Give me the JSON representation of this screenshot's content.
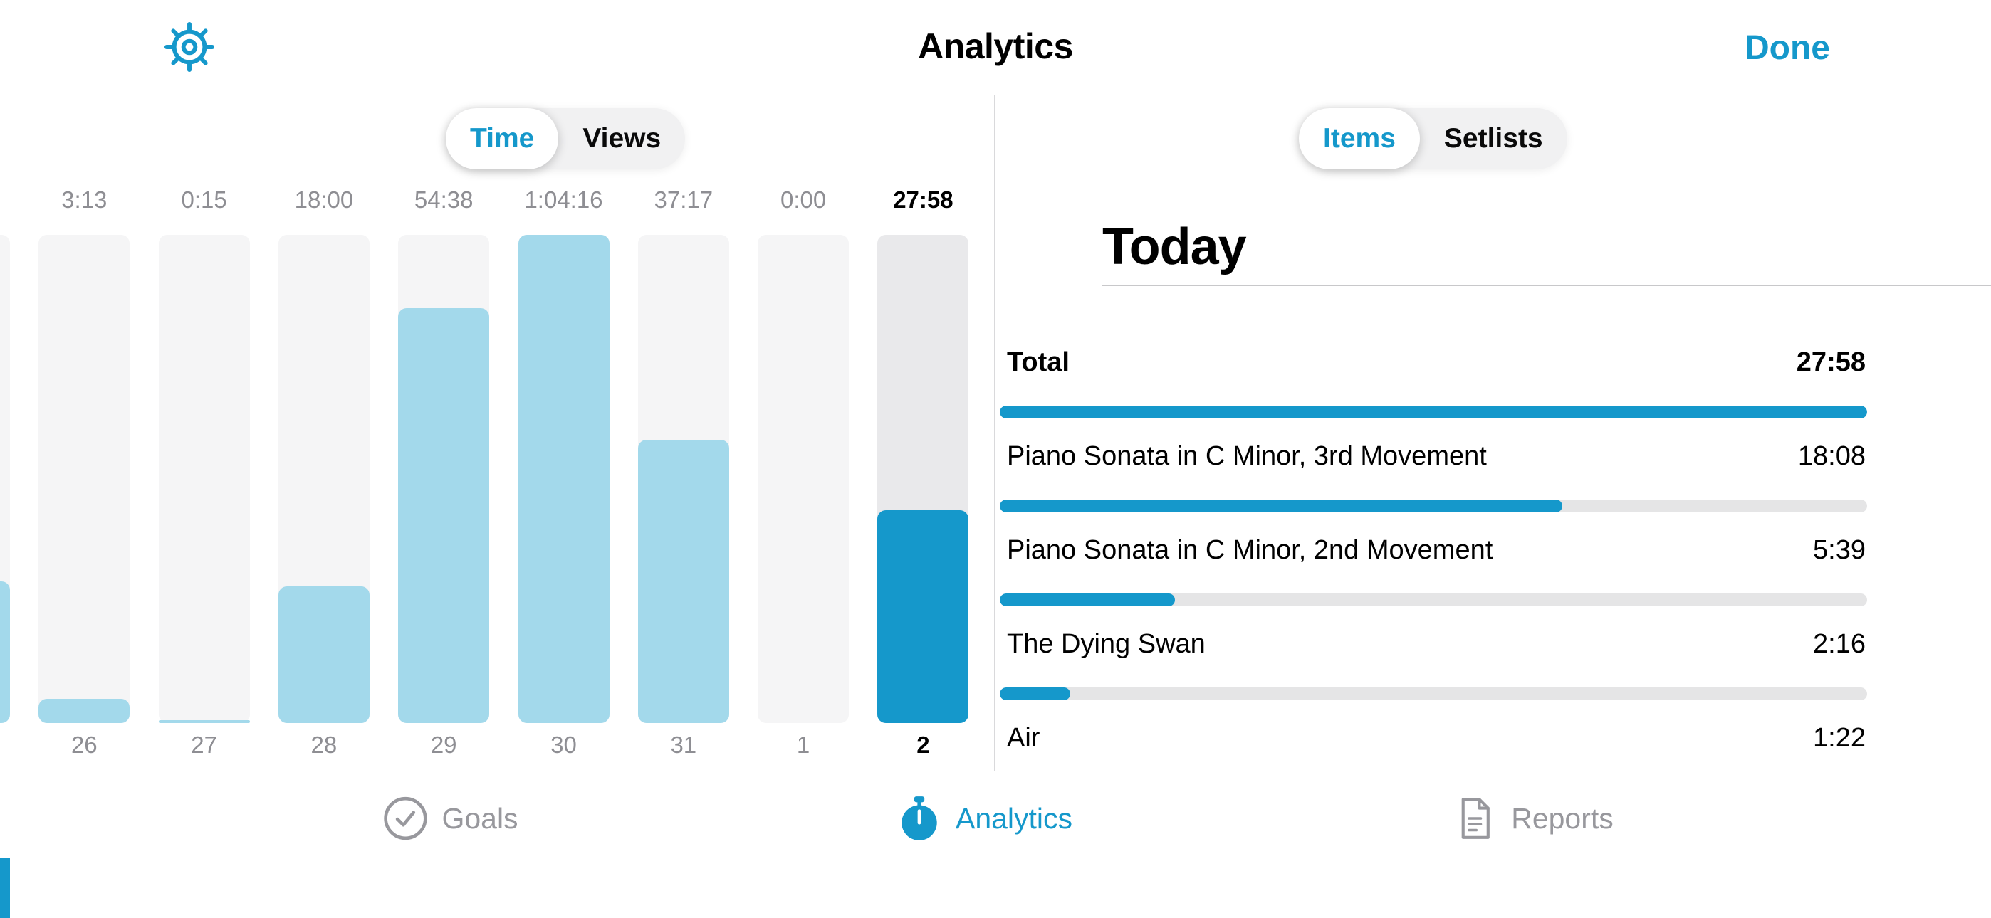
{
  "app": {
    "title": "Analytics",
    "done_label": "Done"
  },
  "colors": {
    "accent": "#1598CB",
    "bar_fill": "#A3D9EB",
    "bar_track": "#F5F5F6",
    "bar_track_selected": "#E9E9EB",
    "progress_track": "#E5E5E6",
    "divider": "#D9D9DB",
    "rule": "#C8C8CA",
    "muted_text": "#8E8E93",
    "tab_inactive": "#98989D"
  },
  "left": {
    "segmented": {
      "options": [
        "Time",
        "Views"
      ],
      "selected_index": 0
    },
    "chart_data": {
      "type": "bar",
      "title": "",
      "categories": [
        "26",
        "27",
        "28",
        "29",
        "30",
        "31",
        "1",
        "2"
      ],
      "value_labels": [
        "3:13",
        "0:15",
        "18:00",
        "54:38",
        "1:04:16",
        "37:17",
        "0:00",
        "27:58"
      ],
      "values_seconds": [
        193,
        15,
        1080,
        3278,
        3856,
        2237,
        0,
        1678
      ],
      "ymax_seconds": 3856,
      "selected_category": "2",
      "partial_left_bar": {
        "visible": true,
        "fraction_of_max": 0.29
      },
      "grid": false,
      "legend": "none"
    }
  },
  "right": {
    "segmented": {
      "options": [
        "Items",
        "Setlists"
      ],
      "selected_index": 0
    },
    "section_title": "Today",
    "total_seconds": 1678,
    "rows": [
      {
        "label": "Total",
        "time": "27:58",
        "seconds": 1678,
        "emphasis": true
      },
      {
        "label": "Piano Sonata in C Minor, 3rd Movement",
        "time": "18:08",
        "seconds": 1088,
        "emphasis": false
      },
      {
        "label": "Piano Sonata in C Minor, 2nd Movement",
        "time": "5:39",
        "seconds": 339,
        "emphasis": false
      },
      {
        "label": "The Dying Swan",
        "time": "2:16",
        "seconds": 136,
        "emphasis": false
      },
      {
        "label": "Air",
        "time": "1:22",
        "seconds": 82,
        "emphasis": false
      }
    ]
  },
  "tabbar": {
    "items": [
      {
        "label": "Goals",
        "icon": "checkmark-circle-icon",
        "selected": false
      },
      {
        "label": "Analytics",
        "icon": "stopwatch-icon",
        "selected": true
      },
      {
        "label": "Reports",
        "icon": "document-icon",
        "selected": false
      }
    ]
  }
}
